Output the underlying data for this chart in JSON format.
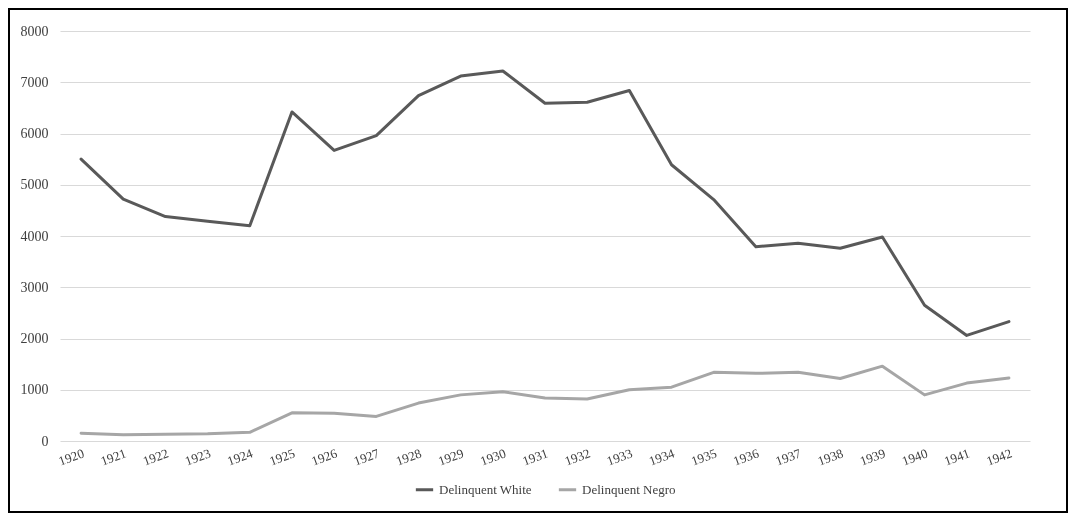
{
  "chart_data": {
    "type": "line",
    "categories": [
      "1920",
      "1921",
      "1922",
      "1923",
      "1924",
      "1925",
      "1926",
      "1927",
      "1928",
      "1929",
      "1930",
      "1931",
      "1932",
      "1933",
      "1934",
      "1935",
      "1936",
      "1937",
      "1938",
      "1939",
      "1940",
      "1941",
      "1942"
    ],
    "series": [
      {
        "name": "Delinquent White",
        "color": "#595959",
        "values": [
          5500,
          4720,
          4380,
          4290,
          4200,
          6420,
          5670,
          5960,
          6740,
          7120,
          7220,
          6590,
          6610,
          6840,
          5390,
          4710,
          3790,
          3860,
          3760,
          3980,
          2650,
          2060,
          2330
        ]
      },
      {
        "name": "Delinquent Negro",
        "color": "#a6a6a6",
        "values": [
          150,
          120,
          130,
          140,
          170,
          550,
          540,
          480,
          740,
          900,
          960,
          840,
          820,
          1000,
          1050,
          1340,
          1320,
          1340,
          1220,
          1460,
          900,
          1130,
          1230
        ]
      }
    ],
    "ylim": [
      0,
      8000
    ],
    "yticks": [
      0,
      1000,
      2000,
      3000,
      4000,
      5000,
      6000,
      7000,
      8000
    ],
    "grid": "y",
    "legend": "bottom",
    "marker": "none",
    "line_style": "solid"
  }
}
